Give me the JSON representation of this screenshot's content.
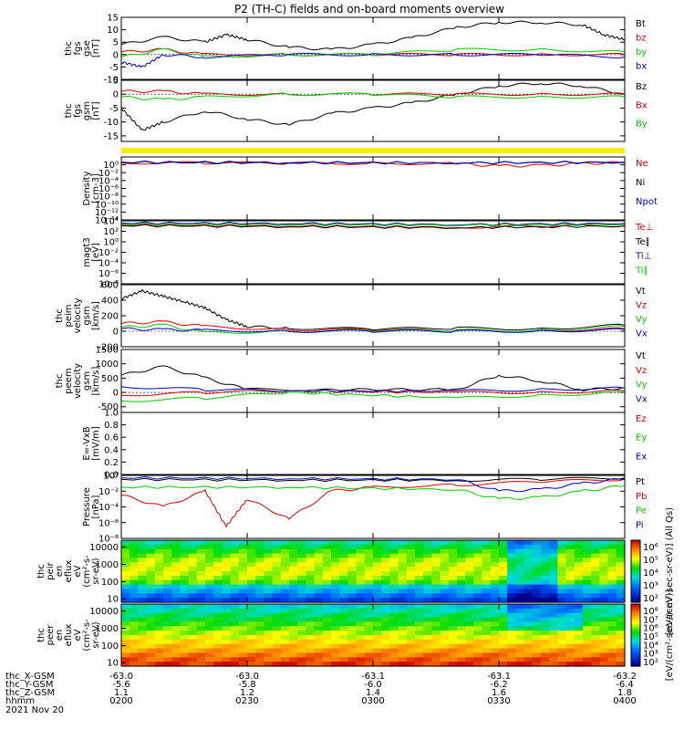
{
  "title": "P2 (TH-C) fields and on-board moments overview",
  "colors": {
    "black": "#000000",
    "red": "#dd0000",
    "green": "#00cc00",
    "blue": "#0000cc",
    "yellow": "#ffee00"
  },
  "panels": [
    {
      "id": "fgs-gse",
      "ylabel": [
        "thc",
        "fgs",
        "gse",
        "[nT]"
      ],
      "ylim": [
        -10,
        15
      ],
      "yticks": [
        "15",
        "10",
        "5",
        "0",
        "-5",
        "-10"
      ],
      "tickvals": [
        15,
        10,
        5,
        0,
        -5,
        -10
      ],
      "legend": [
        {
          "label": "Bt",
          "color": "black"
        },
        {
          "label": "bz",
          "color": "red"
        },
        {
          "label": "by",
          "color": "green"
        },
        {
          "label": "bx",
          "color": "blue"
        }
      ]
    },
    {
      "id": "fgs-gsm",
      "ylabel": [
        "thc",
        "fgs",
        "gsm",
        "[nT]"
      ],
      "ylim": [
        -17,
        5
      ],
      "yticks": [
        "5",
        "0",
        "-5",
        "-10",
        "-15"
      ],
      "tickvals": [
        5,
        0,
        -5,
        -10,
        -15
      ],
      "legend": [
        {
          "label": "Bz",
          "color": "black"
        },
        {
          "label": "Bx",
          "color": "red"
        },
        {
          "label": "By",
          "color": "green"
        }
      ]
    },
    {
      "id": "density",
      "ylabel": [
        "Density",
        "[cm-3]"
      ],
      "ylim": [
        -14,
        2
      ],
      "log": true,
      "yticks": [
        "10⁰",
        "10⁻²",
        "10⁻⁴",
        "10⁻⁶",
        "10⁻⁸",
        "10⁻¹⁰",
        "10⁻¹²",
        "10⁻¹⁴"
      ],
      "tickvals": [
        0,
        -2,
        -4,
        -6,
        -8,
        -10,
        -12,
        -14
      ],
      "legend": [
        {
          "label": "Ne",
          "color": "red"
        },
        {
          "label": "Ni",
          "color": "black"
        },
        {
          "label": "Npot",
          "color": "blue"
        }
      ]
    },
    {
      "id": "temperature",
      "ylabel": [
        "magt3",
        "[eV]"
      ],
      "ylim": [
        -8,
        4
      ],
      "log": true,
      "yticks": [
        "10⁴",
        "10²",
        "10⁰",
        "10⁻²",
        "10⁻⁴",
        "10⁻⁶",
        "10⁻⁸"
      ],
      "tickvals": [
        4,
        2,
        0,
        -2,
        -4,
        -6,
        -8
      ],
      "legend": [
        {
          "label": "Te⊥",
          "color": "red"
        },
        {
          "label": "Te∥",
          "color": "black"
        },
        {
          "label": "Ti⊥",
          "color": "blue"
        },
        {
          "label": "Ti∥",
          "color": "green"
        }
      ]
    },
    {
      "id": "peim-velocity",
      "ylabel": [
        "thc",
        "peim",
        "velocity",
        "gsm",
        "[km/s]"
      ],
      "ylim": [
        -200,
        600
      ],
      "yticks": [
        "600",
        "400",
        "200",
        "0",
        "-200"
      ],
      "tickvals": [
        600,
        400,
        200,
        0,
        -200
      ],
      "legend": [
        {
          "label": "Vt",
          "color": "black"
        },
        {
          "label": "Vz",
          "color": "red"
        },
        {
          "label": "Vy",
          "color": "green"
        },
        {
          "label": "Vx",
          "color": "blue"
        }
      ]
    },
    {
      "id": "peem-velocity",
      "ylabel": [
        "thc",
        "peem",
        "velocity",
        "gsm",
        "[km/s]"
      ],
      "ylim": [
        -700,
        1500
      ],
      "yticks": [
        "1500",
        "1000",
        "500",
        "0",
        "-500"
      ],
      "tickvals": [
        1500,
        1000,
        500,
        0,
        -500
      ],
      "legend": [
        {
          "label": "Vt",
          "color": "black"
        },
        {
          "label": "Vz",
          "color": "red"
        },
        {
          "label": "Vy",
          "color": "green"
        },
        {
          "label": "Vx",
          "color": "blue"
        }
      ]
    },
    {
      "id": "efield",
      "ylabel": [
        "E=-VxB",
        "[mV/m]"
      ],
      "ylim": [
        0,
        1
      ],
      "yticks": [
        "1.0",
        "0.8",
        "0.6",
        "0.4",
        "0.2",
        "0.0"
      ],
      "tickvals": [
        1,
        0.8,
        0.6,
        0.4,
        0.2,
        0
      ],
      "legend": [
        {
          "label": "Ez",
          "color": "red"
        },
        {
          "label": "Ey",
          "color": "green"
        },
        {
          "label": "Ex",
          "color": "blue"
        }
      ]
    },
    {
      "id": "pressure",
      "ylabel": [
        "Pressure",
        "[nPa]"
      ],
      "ylim": [
        -8,
        0
      ],
      "log": true,
      "yticks": [
        "10⁰",
        "10⁻²",
        "10⁻⁴",
        "10⁻⁶",
        "10⁻⁸"
      ],
      "tickvals": [
        0,
        -2,
        -4,
        -6,
        -8
      ],
      "legend": [
        {
          "label": "Pt",
          "color": "black"
        },
        {
          "label": "Pb",
          "color": "red"
        },
        {
          "label": "Pe",
          "color": "green"
        },
        {
          "label": "Pi",
          "color": "blue"
        }
      ]
    },
    {
      "id": "peir-spectrogram",
      "ylabel": [
        "thc",
        "peir",
        "en",
        "eflux",
        "eV",
        "(cm²-s-",
        "sr-eV)"
      ],
      "log": true,
      "yticks": [
        "10000",
        "1000",
        "100",
        "10"
      ],
      "tickvals": [
        4,
        3,
        2,
        1
      ]
    },
    {
      "id": "peer-spectrogram",
      "ylabel": [
        "thc",
        "peer",
        "en",
        "eflux",
        "eV",
        "(cm²-s-",
        "sr-eV)"
      ],
      "log": true,
      "yticks": [
        "10000",
        "1000",
        "100",
        "10"
      ],
      "tickvals": [
        4,
        3,
        2,
        1
      ]
    }
  ],
  "colorbars": [
    {
      "labels": [
        "10⁶",
        "10⁵",
        "10⁴",
        "10³",
        "10²"
      ],
      "caption": "[eV/(cm²-sec-sr-eV)] (All Qs)"
    },
    {
      "labels": [
        "10⁸",
        "10⁷",
        "10⁶",
        "10⁵",
        "10⁴",
        "10³",
        "10²"
      ],
      "caption": "[eV/(cm²-sec-sr-eV)]"
    }
  ],
  "x_annotations": {
    "row_labels": [
      "thc_X-GSM",
      "thc_Y-GSM",
      "thc_Z-GSM",
      "hhmm",
      "2021 Nov 20"
    ],
    "columns": [
      {
        "x": "-63.0",
        "y": "-5.6",
        "z": "1.1",
        "t": "0200"
      },
      {
        "x": "-63.0",
        "y": "-5.8",
        "z": "1.2",
        "t": "0230"
      },
      {
        "x": "-63.1",
        "y": "-6.0",
        "z": "1.4",
        "t": "0300"
      },
      {
        "x": "-63.1",
        "y": "-6.2",
        "z": "1.6",
        "t": "0330"
      },
      {
        "x": "-63.2",
        "y": "-6.4",
        "z": "1.8",
        "t": "0400"
      }
    ]
  },
  "chart_data": {
    "type": "line",
    "x_range": [
      "0200",
      "0400"
    ],
    "series": [
      {
        "panel": "fgs-gse",
        "name": "Bt",
        "x": [
          0,
          10,
          20,
          25,
          30,
          40,
          50,
          60,
          70,
          80,
          90,
          100,
          110,
          115,
          120
        ],
        "values": [
          4,
          7,
          5,
          8,
          6,
          3,
          2,
          4,
          7,
          11,
          13,
          13,
          12,
          8,
          6
        ]
      },
      {
        "panel": "fgs-gse",
        "name": "bz",
        "x": [
          0,
          10,
          20,
          40,
          60,
          80,
          100,
          120
        ],
        "values": [
          1,
          2,
          0,
          0,
          0,
          0,
          0,
          0
        ]
      },
      {
        "panel": "fgs-gse",
        "name": "by",
        "x": [
          0,
          10,
          20,
          40,
          60,
          80,
          100,
          120
        ],
        "values": [
          -1,
          2,
          -1,
          0,
          0,
          2,
          2,
          1
        ]
      },
      {
        "panel": "fgs-gse",
        "name": "bx",
        "x": [
          0,
          5,
          10,
          20,
          40,
          60,
          80,
          100,
          120
        ],
        "values": [
          -3,
          -5,
          0,
          -1,
          0,
          0,
          0,
          0,
          -1
        ]
      },
      {
        "panel": "fgs-gsm",
        "name": "Bz",
        "x": [
          0,
          5,
          10,
          20,
          30,
          40,
          50,
          60,
          70,
          80,
          90,
          100,
          110,
          120
        ],
        "values": [
          -5,
          -13,
          -10,
          -6,
          -9,
          -11,
          -7,
          -5,
          -3,
          0,
          3,
          4,
          3,
          0
        ]
      },
      {
        "panel": "fgs-gsm",
        "name": "Bx",
        "x": [
          0,
          10,
          20,
          40,
          60,
          80,
          100,
          120
        ],
        "values": [
          1,
          1,
          0,
          0,
          0,
          0,
          0,
          0
        ]
      },
      {
        "panel": "fgs-gsm",
        "name": "By",
        "x": [
          0,
          10,
          20,
          40,
          60,
          80,
          100,
          120
        ],
        "values": [
          -1,
          -2,
          -1,
          0,
          0,
          -1,
          -1,
          -1
        ]
      },
      {
        "panel": "density",
        "name": "Ne",
        "x": [
          0,
          20,
          40,
          60,
          80,
          90,
          100,
          110,
          120
        ],
        "values": [
          0.5,
          0.5,
          0.4,
          0.4,
          0.3,
          -0.3,
          -0.2,
          0.3,
          0.6
        ]
      },
      {
        "panel": "density",
        "name": "Ni",
        "x": [
          0,
          40,
          80,
          120
        ],
        "values": [
          0.6,
          0.5,
          0.5,
          0.6
        ]
      },
      {
        "panel": "density",
        "name": "Npot",
        "x": [
          0,
          40,
          80,
          120
        ],
        "values": [
          0.7,
          0.6,
          0.5,
          0.7
        ]
      },
      {
        "panel": "temperature",
        "name": "Te⊥",
        "x": [
          0,
          40,
          80,
          100,
          120
        ],
        "values": [
          3.2,
          3.0,
          2.8,
          2.9,
          3.1
        ]
      },
      {
        "panel": "temperature",
        "name": "Te∥",
        "x": [
          0,
          40,
          80,
          120
        ],
        "values": [
          3.1,
          2.9,
          2.7,
          3.0
        ]
      },
      {
        "panel": "temperature",
        "name": "Ti⊥",
        "x": [
          0,
          40,
          80,
          120
        ],
        "values": [
          3.6,
          3.5,
          3.3,
          3.5
        ]
      },
      {
        "panel": "temperature",
        "name": "Ti∥",
        "x": [
          0,
          40,
          80,
          120
        ],
        "values": [
          3.4,
          3.3,
          3.2,
          3.3
        ]
      },
      {
        "panel": "peim-velocity",
        "name": "Vt",
        "x": [
          0,
          5,
          10,
          15,
          20,
          25,
          30,
          40,
          60,
          80,
          100,
          120
        ],
        "values": [
          420,
          520,
          450,
          380,
          300,
          150,
          60,
          40,
          30,
          40,
          30,
          80
        ]
      },
      {
        "panel": "peim-velocity",
        "name": "Vz",
        "x": [
          0,
          10,
          20,
          40,
          60,
          80,
          100,
          120
        ],
        "values": [
          100,
          120,
          60,
          20,
          20,
          10,
          10,
          30
        ]
      },
      {
        "panel": "peim-velocity",
        "name": "Vy",
        "x": [
          0,
          10,
          20,
          40,
          60,
          80,
          100,
          120
        ],
        "values": [
          50,
          80,
          -20,
          0,
          10,
          10,
          10,
          60
        ]
      },
      {
        "panel": "peim-velocity",
        "name": "Vx",
        "x": [
          0,
          10,
          20,
          40,
          60,
          80,
          100,
          120
        ],
        "values": [
          30,
          20,
          10,
          0,
          0,
          0,
          0,
          20
        ]
      },
      {
        "panel": "peem-velocity",
        "name": "Vt",
        "x": [
          0,
          10,
          20,
          30,
          50,
          80,
          90,
          100,
          110,
          120
        ],
        "values": [
          600,
          900,
          500,
          100,
          100,
          100,
          600,
          400,
          100,
          150
        ]
      },
      {
        "panel": "peem-velocity",
        "name": "Vz",
        "x": [
          0,
          20,
          40,
          80,
          100,
          120
        ],
        "values": [
          -100,
          0,
          50,
          0,
          0,
          50
        ]
      },
      {
        "panel": "peem-velocity",
        "name": "Vy",
        "x": [
          0,
          20,
          40,
          80,
          100,
          120
        ],
        "values": [
          -300,
          -200,
          0,
          -200,
          -100,
          0
        ]
      },
      {
        "panel": "peem-velocity",
        "name": "Vx",
        "x": [
          0,
          20,
          40,
          80,
          100,
          120
        ],
        "values": [
          200,
          100,
          50,
          50,
          100,
          150
        ]
      },
      {
        "panel": "pressure",
        "name": "Pt",
        "x": [
          0,
          40,
          80,
          100,
          120
        ],
        "values": [
          -0.5,
          -0.6,
          -0.6,
          -0.5,
          -0.3
        ]
      },
      {
        "panel": "pressure",
        "name": "Pb",
        "x": [
          0,
          10,
          20,
          25,
          30,
          40,
          50,
          60,
          80,
          100,
          120
        ],
        "values": [
          -2.5,
          -4,
          -2,
          -6.5,
          -3,
          -5.5,
          -2,
          -1.5,
          -1.2,
          -0.8,
          -0.5
        ]
      },
      {
        "panel": "pressure",
        "name": "Pe",
        "x": [
          0,
          40,
          80,
          90,
          100,
          110,
          120
        ],
        "values": [
          -1.5,
          -1.5,
          -1.8,
          -3,
          -2.8,
          -2,
          -1.3
        ]
      },
      {
        "panel": "pressure",
        "name": "Pi",
        "x": [
          0,
          40,
          80,
          90,
          100,
          110,
          120
        ],
        "values": [
          -0.3,
          -0.4,
          -0.5,
          -2,
          -1.8,
          -1,
          -0.4
        ]
      }
    ]
  }
}
